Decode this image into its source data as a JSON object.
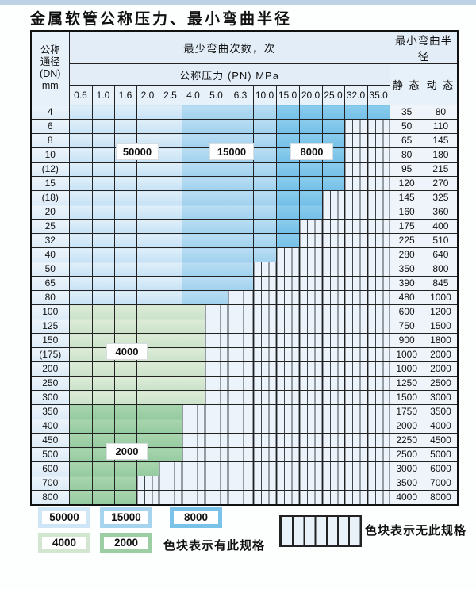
{
  "page": {
    "title": "金属软管公称压力、最小弯曲半径"
  },
  "table": {
    "header": {
      "dn_label_lines": [
        "公称",
        "通径",
        "(DN)",
        "mm"
      ],
      "bend_cycles_label": "最少弯曲次数，次",
      "pressure_label": "公称压力 (PN) MPa",
      "radius_label": "最小弯曲半径",
      "static_label": "静 态",
      "dynamic_label": "动 态",
      "pressure_columns": [
        "0.6",
        "1.0",
        "1.6",
        "2.0",
        "2.5",
        "4.0",
        "5.0",
        "6.3",
        "10.0",
        "15.0",
        "20.0",
        "25.0",
        "32.0",
        "35.0"
      ]
    },
    "band_legend_note": "cell band keys: b1=50000 cycles, b2=15000, b3=8000, g1=4000, g2=2000, x=no specification",
    "rows": [
      {
        "dn": "4",
        "static": "35",
        "dynamic": "80",
        "cells": [
          "b1",
          "b1",
          "b1",
          "b1",
          "b1",
          "b2",
          "b2",
          "b2",
          "b2",
          "b3",
          "b3",
          "b3",
          "b3",
          "b3"
        ]
      },
      {
        "dn": "6",
        "static": "50",
        "dynamic": "110",
        "cells": [
          "b1",
          "b1",
          "b1",
          "b1",
          "b1",
          "b2",
          "b2",
          "b2",
          "b2",
          "b3",
          "b3",
          "b3",
          "x",
          "x"
        ]
      },
      {
        "dn": "8",
        "static": "65",
        "dynamic": "145",
        "cells": [
          "b1",
          "b1",
          "b1",
          "b1",
          "b1",
          "b2",
          "b2",
          "b2",
          "b2",
          "b3",
          "b3",
          "b3",
          "x",
          "x"
        ]
      },
      {
        "dn": "10",
        "static": "80",
        "dynamic": "180",
        "cells": [
          "b1",
          "b1",
          "b1",
          "b1",
          "b1",
          "b2",
          "b2",
          "b2",
          "b2",
          "b3",
          "b3",
          "b3",
          "x",
          "x"
        ]
      },
      {
        "dn": "(12)",
        "static": "95",
        "dynamic": "215",
        "cells": [
          "b1",
          "b1",
          "b1",
          "b1",
          "b1",
          "b2",
          "b2",
          "b2",
          "b2",
          "b3",
          "b3",
          "b3",
          "x",
          "x"
        ]
      },
      {
        "dn": "15",
        "static": "120",
        "dynamic": "270",
        "cells": [
          "b1",
          "b1",
          "b1",
          "b1",
          "b1",
          "b2",
          "b2",
          "b2",
          "b2",
          "b3",
          "b3",
          "b3",
          "x",
          "x"
        ]
      },
      {
        "dn": "(18)",
        "static": "145",
        "dynamic": "325",
        "cells": [
          "b1",
          "b1",
          "b1",
          "b1",
          "b1",
          "b2",
          "b2",
          "b2",
          "b2",
          "b3",
          "b3",
          "x",
          "x",
          "x"
        ]
      },
      {
        "dn": "20",
        "static": "160",
        "dynamic": "360",
        "cells": [
          "b1",
          "b1",
          "b1",
          "b1",
          "b1",
          "b2",
          "b2",
          "b2",
          "b2",
          "b3",
          "b3",
          "x",
          "x",
          "x"
        ]
      },
      {
        "dn": "25",
        "static": "175",
        "dynamic": "400",
        "cells": [
          "b1",
          "b1",
          "b1",
          "b1",
          "b1",
          "b2",
          "b2",
          "b2",
          "b2",
          "b3",
          "x",
          "x",
          "x",
          "x"
        ]
      },
      {
        "dn": "32",
        "static": "225",
        "dynamic": "510",
        "cells": [
          "b1",
          "b1",
          "b1",
          "b1",
          "b1",
          "b2",
          "b2",
          "b2",
          "b2",
          "b3",
          "x",
          "x",
          "x",
          "x"
        ]
      },
      {
        "dn": "40",
        "static": "280",
        "dynamic": "640",
        "cells": [
          "b1",
          "b1",
          "b1",
          "b1",
          "b1",
          "b2",
          "b2",
          "b2",
          "b2",
          "x",
          "x",
          "x",
          "x",
          "x"
        ]
      },
      {
        "dn": "50",
        "static": "350",
        "dynamic": "800",
        "cells": [
          "b1",
          "b1",
          "b1",
          "b1",
          "b1",
          "b2",
          "b2",
          "b2",
          "x",
          "x",
          "x",
          "x",
          "x",
          "x"
        ]
      },
      {
        "dn": "65",
        "static": "390",
        "dynamic": "845",
        "cells": [
          "b1",
          "b1",
          "b1",
          "b1",
          "b1",
          "b2",
          "b2",
          "b2",
          "x",
          "x",
          "x",
          "x",
          "x",
          "x"
        ]
      },
      {
        "dn": "80",
        "static": "480",
        "dynamic": "1000",
        "cells": [
          "b1",
          "b1",
          "b1",
          "b1",
          "b1",
          "b2",
          "b2",
          "x",
          "x",
          "x",
          "x",
          "x",
          "x",
          "x"
        ]
      },
      {
        "dn": "100",
        "static": "600",
        "dynamic": "1200",
        "cells": [
          "g1",
          "g1",
          "g1",
          "g1",
          "g1",
          "g1",
          "x",
          "x",
          "x",
          "x",
          "x",
          "x",
          "x",
          "x"
        ]
      },
      {
        "dn": "125",
        "static": "750",
        "dynamic": "1500",
        "cells": [
          "g1",
          "g1",
          "g1",
          "g1",
          "g1",
          "g1",
          "x",
          "x",
          "x",
          "x",
          "x",
          "x",
          "x",
          "x"
        ]
      },
      {
        "dn": "150",
        "static": "900",
        "dynamic": "1800",
        "cells": [
          "g1",
          "g1",
          "g1",
          "g1",
          "g1",
          "g1",
          "x",
          "x",
          "x",
          "x",
          "x",
          "x",
          "x",
          "x"
        ]
      },
      {
        "dn": "(175)",
        "static": "1000",
        "dynamic": "2000",
        "cells": [
          "g1",
          "g1",
          "g1",
          "g1",
          "g1",
          "g1",
          "x",
          "x",
          "x",
          "x",
          "x",
          "x",
          "x",
          "x"
        ]
      },
      {
        "dn": "200",
        "static": "1000",
        "dynamic": "2000",
        "cells": [
          "g1",
          "g1",
          "g1",
          "g1",
          "g1",
          "g1",
          "x",
          "x",
          "x",
          "x",
          "x",
          "x",
          "x",
          "x"
        ]
      },
      {
        "dn": "250",
        "static": "1250",
        "dynamic": "2500",
        "cells": [
          "g1",
          "g1",
          "g1",
          "g1",
          "g1",
          "g1",
          "x",
          "x",
          "x",
          "x",
          "x",
          "x",
          "x",
          "x"
        ]
      },
      {
        "dn": "300",
        "static": "1500",
        "dynamic": "3000",
        "cells": [
          "g1",
          "g1",
          "g1",
          "g1",
          "g1",
          "g1",
          "x",
          "x",
          "x",
          "x",
          "x",
          "x",
          "x",
          "x"
        ]
      },
      {
        "dn": "350",
        "static": "1750",
        "dynamic": "3500",
        "cells": [
          "g2",
          "g2",
          "g2",
          "g2",
          "g2",
          "x",
          "x",
          "x",
          "x",
          "x",
          "x",
          "x",
          "x",
          "x"
        ]
      },
      {
        "dn": "400",
        "static": "2000",
        "dynamic": "4000",
        "cells": [
          "g2",
          "g2",
          "g2",
          "g2",
          "g2",
          "x",
          "x",
          "x",
          "x",
          "x",
          "x",
          "x",
          "x",
          "x"
        ]
      },
      {
        "dn": "450",
        "static": "2250",
        "dynamic": "4500",
        "cells": [
          "g2",
          "g2",
          "g2",
          "g2",
          "g2",
          "x",
          "x",
          "x",
          "x",
          "x",
          "x",
          "x",
          "x",
          "x"
        ]
      },
      {
        "dn": "500",
        "static": "2500",
        "dynamic": "5000",
        "cells": [
          "g2",
          "g2",
          "g2",
          "g2",
          "g2",
          "x",
          "x",
          "x",
          "x",
          "x",
          "x",
          "x",
          "x",
          "x"
        ]
      },
      {
        "dn": "600",
        "static": "3000",
        "dynamic": "6000",
        "cells": [
          "g2",
          "g2",
          "g2",
          "g2",
          "x",
          "x",
          "x",
          "x",
          "x",
          "x",
          "x",
          "x",
          "x",
          "x"
        ]
      },
      {
        "dn": "700",
        "static": "3500",
        "dynamic": "7000",
        "cells": [
          "g2",
          "g2",
          "g2",
          "x",
          "x",
          "x",
          "x",
          "x",
          "x",
          "x",
          "x",
          "x",
          "x",
          "x"
        ]
      },
      {
        "dn": "800",
        "static": "4000",
        "dynamic": "8000",
        "cells": [
          "g2",
          "g2",
          "g2",
          "x",
          "x",
          "x",
          "x",
          "x",
          "x",
          "x",
          "x",
          "x",
          "x",
          "x"
        ]
      }
    ]
  },
  "overlays": {
    "label_50000": "50000",
    "label_15000": "15000",
    "label_8000": "8000",
    "label_4000": "4000",
    "label_2000": "2000"
  },
  "legend": {
    "items": [
      {
        "key": "b50000",
        "label": "50000"
      },
      {
        "key": "b15000",
        "label": "15000"
      },
      {
        "key": "b8000",
        "label": "8000"
      },
      {
        "key": "b4000",
        "label": "4000"
      },
      {
        "key": "b2000",
        "label": "2000"
      }
    ],
    "has_spec_text": "色块表示有此规格",
    "no_spec_text": "色块表示无此规格"
  },
  "colors": {
    "b50000": "#cfe6f7",
    "b15000": "#a6d4ef",
    "b8000": "#7bc2e9",
    "b4000": "#d3e6cf",
    "b2000": "#9ccea3",
    "no_spec_bg": "#edf3fa",
    "grid_line": "#222222",
    "top_strip": "#bdd3e5"
  }
}
